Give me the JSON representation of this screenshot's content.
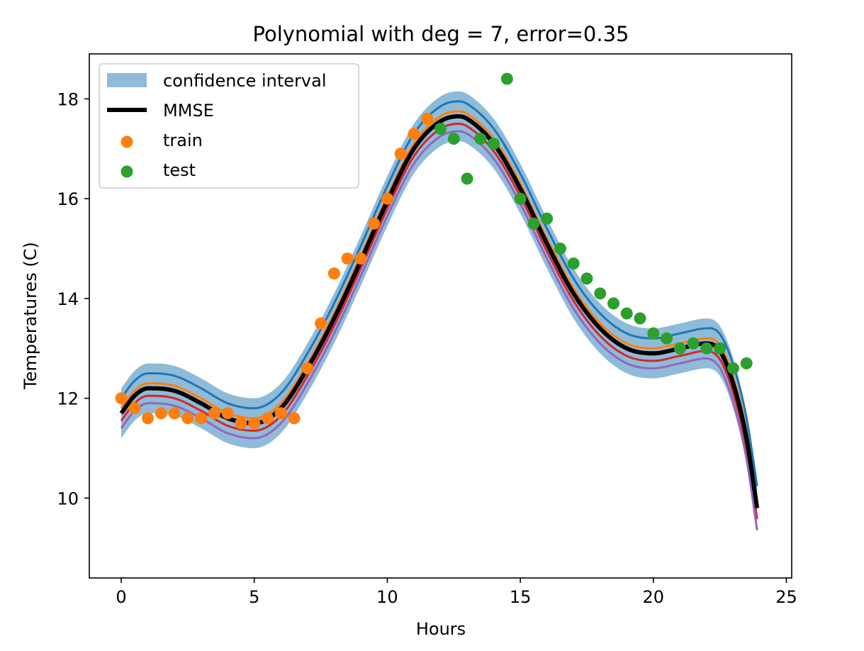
{
  "chart_data": {
    "type": "line",
    "title": "Polynomial with deg = 7, error=0.35",
    "xlabel": "Hours",
    "ylabel": "Temperatures (C)",
    "xlim": [
      -1.2,
      25.2
    ],
    "ylim": [
      8.4,
      18.9
    ],
    "xticks": [
      0,
      5,
      10,
      15,
      20,
      25
    ],
    "yticks": [
      10,
      12,
      14,
      16,
      18
    ],
    "grid": false,
    "legend": {
      "location": "upper-left",
      "entries": [
        "confidence interval",
        "MMSE",
        "train",
        "test"
      ]
    },
    "colors": {
      "band": "#1f77b4",
      "mmse": "#000000",
      "train": "#ff7f0e",
      "test": "#2ca02c",
      "fits": [
        "#1f77b4",
        "#ff7f0e",
        "#2ca02c",
        "#d62728",
        "#9467bd"
      ]
    },
    "mmse_curve": {
      "x": [
        0,
        0.5,
        1,
        2,
        3,
        4,
        5,
        6,
        7,
        8,
        9,
        10,
        11,
        12,
        12.7,
        13,
        14,
        15,
        16,
        17,
        18,
        19,
        20,
        21,
        22,
        22.5,
        23,
        23.5,
        23.9
      ],
      "y": [
        11.7,
        12.05,
        12.2,
        12.15,
        11.9,
        11.6,
        11.5,
        11.8,
        12.6,
        13.6,
        14.75,
        15.95,
        17.0,
        17.55,
        17.65,
        17.6,
        17.1,
        16.2,
        15.1,
        14.1,
        13.4,
        13.0,
        12.9,
        13.0,
        13.1,
        12.95,
        12.3,
        11.2,
        9.8
      ]
    },
    "band_halfwidth": 0.5,
    "fit_offsets": [
      0.3,
      0.1,
      0.0,
      -0.15,
      -0.3
    ],
    "train": {
      "x": [
        0,
        0.5,
        1,
        1.5,
        2,
        2.5,
        3,
        3.5,
        4,
        4.5,
        5,
        5.5,
        6,
        6.5,
        7,
        7.5,
        8,
        8.5,
        9,
        9.5,
        10,
        10.5,
        11,
        11.5
      ],
      "y": [
        12.0,
        11.8,
        11.6,
        11.7,
        11.7,
        11.6,
        11.6,
        11.7,
        11.7,
        11.5,
        11.5,
        11.6,
        11.7,
        11.6,
        12.6,
        13.5,
        14.5,
        14.8,
        14.8,
        15.5,
        16.0,
        16.9,
        17.3,
        17.6
      ]
    },
    "test": {
      "x": [
        12,
        12.5,
        13,
        13.5,
        14,
        14.5,
        15,
        15.5,
        16,
        16.5,
        17,
        17.5,
        18,
        18.5,
        19,
        19.5,
        20,
        20.5,
        21,
        21.5,
        22,
        22.5,
        23,
        23.5
      ],
      "y": [
        17.4,
        17.2,
        16.4,
        17.2,
        17.1,
        18.4,
        16.0,
        15.5,
        15.6,
        15.0,
        14.7,
        14.4,
        14.1,
        13.9,
        13.7,
        13.6,
        13.3,
        13.2,
        13.0,
        13.1,
        13.0,
        13.0,
        12.6,
        12.7
      ]
    }
  }
}
